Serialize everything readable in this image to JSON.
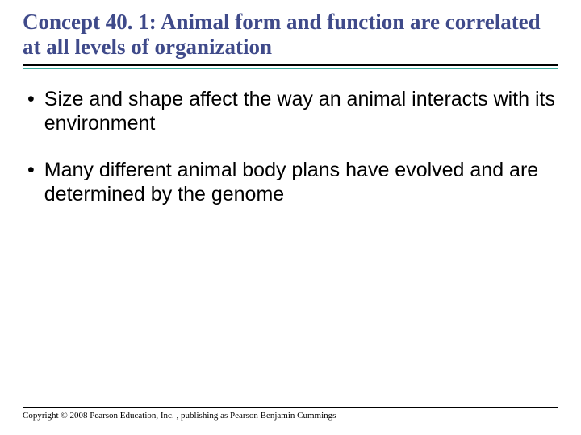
{
  "colors": {
    "title_color": "#3f4a8a",
    "accent_rule_color": "#3aa89b",
    "title_rule_color": "#000000",
    "text_color": "#000000",
    "background": "#ffffff"
  },
  "typography": {
    "title_font": "Times New Roman",
    "title_size_pt": 20,
    "title_weight": "bold",
    "body_font": "Arial",
    "body_size_pt": 19,
    "copyright_font": "Times New Roman",
    "copyright_size_pt": 8
  },
  "title": "Concept 40. 1: Animal form and function are correlated at all levels of organization",
  "bullets": [
    "Size and shape affect the way an animal interacts with its environment",
    "Many different animal body plans have evolved and are determined by the genome"
  ],
  "copyright": "Copyright © 2008 Pearson Education, Inc. , publishing as Pearson Benjamin Cummings"
}
